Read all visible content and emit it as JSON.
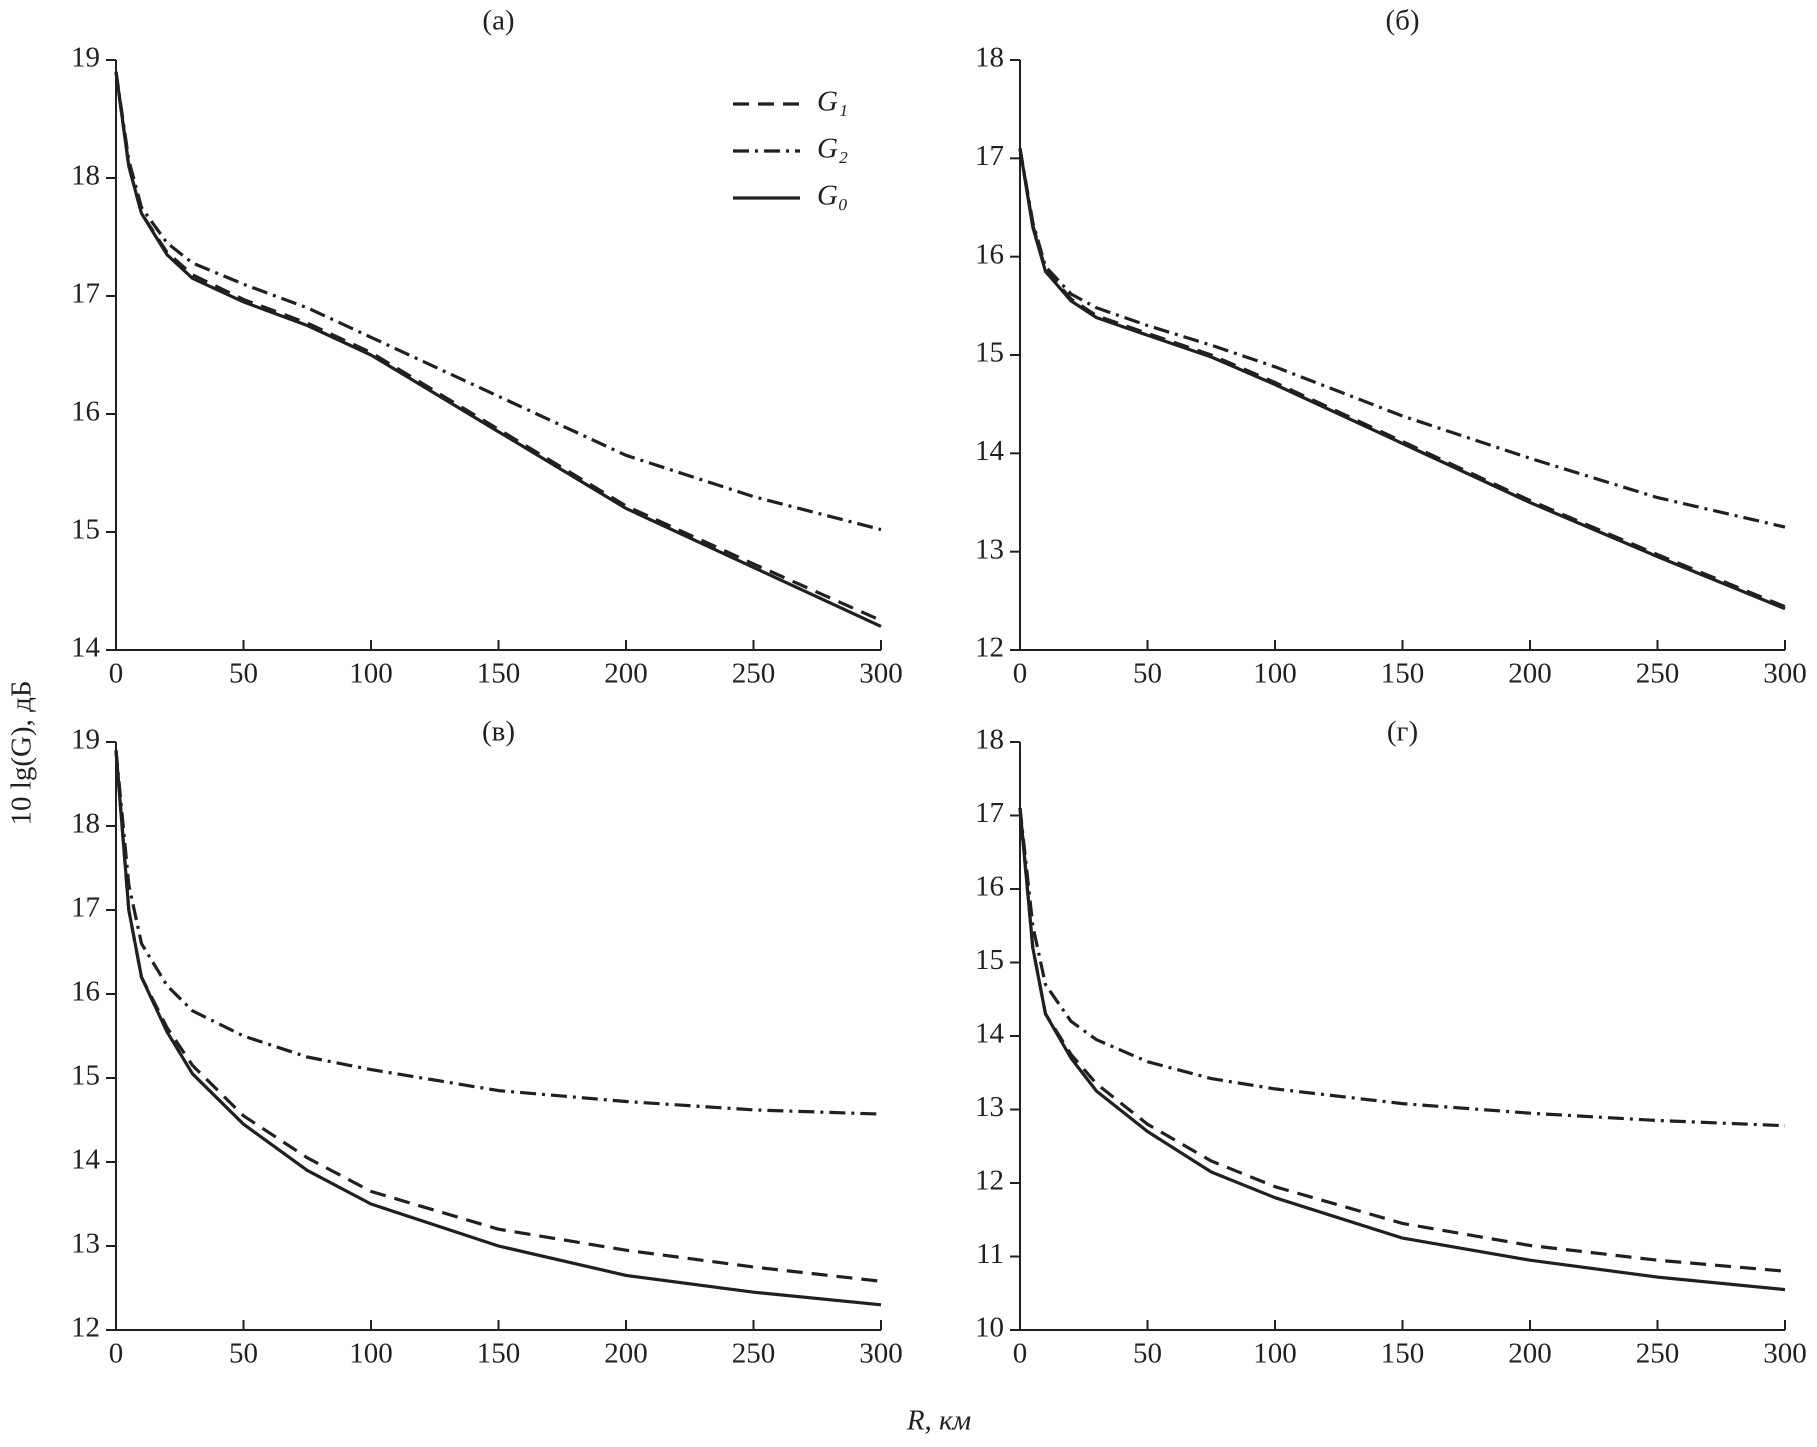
{
  "xlabel": "R, км",
  "ylabel": "10 lg(G), дБ",
  "chart_data": [
    {
      "type": "line",
      "title": "(а)",
      "x": [
        0,
        5,
        10,
        20,
        30,
        50,
        75,
        100,
        150,
        200,
        250,
        300
      ],
      "xlim": [
        0,
        300
      ],
      "xticks": [
        0,
        50,
        100,
        150,
        200,
        250,
        300
      ],
      "ylim": [
        14,
        19
      ],
      "yticks": [
        14,
        15,
        16,
        17,
        18,
        19
      ],
      "legend": "upper right",
      "series": [
        {
          "name": "G₁",
          "color": "#231f20",
          "dash": "dashed",
          "values": [
            18.9,
            18.1,
            17.7,
            17.37,
            17.18,
            16.97,
            16.77,
            16.52,
            15.87,
            15.22,
            14.73,
            14.25
          ]
        },
        {
          "name": "G₂",
          "color": "#231f20",
          "dash": "dashdot",
          "values": [
            18.9,
            18.15,
            17.75,
            17.45,
            17.28,
            17.1,
            16.9,
            16.65,
            16.15,
            15.65,
            15.3,
            15.02
          ]
        },
        {
          "name": "G₀",
          "color": "#231f20",
          "dash": "solid",
          "values": [
            18.9,
            18.1,
            17.7,
            17.35,
            17.15,
            16.95,
            16.75,
            16.5,
            15.85,
            15.2,
            14.7,
            14.2
          ]
        }
      ]
    },
    {
      "type": "line",
      "title": "(б)",
      "x": [
        0,
        5,
        10,
        20,
        30,
        50,
        75,
        100,
        150,
        200,
        250,
        300
      ],
      "xlim": [
        0,
        300
      ],
      "xticks": [
        0,
        50,
        100,
        150,
        200,
        250,
        300
      ],
      "ylim": [
        12,
        18
      ],
      "yticks": [
        12,
        13,
        14,
        15,
        16,
        17,
        18
      ],
      "series": [
        {
          "color": "#231f20",
          "dash": "dashed",
          "values": [
            17.1,
            16.32,
            15.87,
            15.57,
            15.4,
            15.22,
            15.0,
            14.72,
            14.12,
            13.52,
            12.97,
            12.44
          ]
        },
        {
          "color": "#231f20",
          "dash": "dashdot",
          "values": [
            17.1,
            16.35,
            15.9,
            15.62,
            15.48,
            15.3,
            15.1,
            14.88,
            14.38,
            13.95,
            13.55,
            13.25
          ]
        },
        {
          "color": "#231f20",
          "dash": "solid",
          "values": [
            17.1,
            16.3,
            15.85,
            15.55,
            15.38,
            15.2,
            14.98,
            14.7,
            14.1,
            13.5,
            12.95,
            12.42
          ]
        }
      ]
    },
    {
      "type": "line",
      "title": "(в)",
      "x": [
        0,
        5,
        10,
        20,
        30,
        50,
        75,
        100,
        150,
        200,
        250,
        300
      ],
      "xlim": [
        0,
        300
      ],
      "xticks": [
        0,
        50,
        100,
        150,
        200,
        250,
        300
      ],
      "ylim": [
        12,
        19
      ],
      "yticks": [
        12,
        13,
        14,
        15,
        16,
        17,
        18,
        19
      ],
      "series": [
        {
          "color": "#231f20",
          "dash": "dashed",
          "values": [
            18.9,
            17.0,
            16.2,
            15.6,
            15.15,
            14.55,
            14.05,
            13.65,
            13.2,
            12.95,
            12.75,
            12.58
          ]
        },
        {
          "color": "#231f20",
          "dash": "dashdot",
          "values": [
            18.9,
            17.3,
            16.6,
            16.1,
            15.8,
            15.5,
            15.25,
            15.1,
            14.85,
            14.72,
            14.62,
            14.57
          ]
        },
        {
          "color": "#231f20",
          "dash": "solid",
          "values": [
            18.9,
            17.0,
            16.2,
            15.55,
            15.05,
            14.45,
            13.9,
            13.5,
            13.0,
            12.65,
            12.45,
            12.3
          ]
        }
      ]
    },
    {
      "type": "line",
      "title": "(г)",
      "x": [
        0,
        5,
        10,
        20,
        30,
        50,
        75,
        100,
        150,
        200,
        250,
        300
      ],
      "xlim": [
        0,
        300
      ],
      "xticks": [
        0,
        50,
        100,
        150,
        200,
        250,
        300
      ],
      "ylim": [
        10,
        18
      ],
      "yticks": [
        10,
        11,
        12,
        13,
        14,
        15,
        16,
        17,
        18
      ],
      "series": [
        {
          "color": "#231f20",
          "dash": "dashed",
          "values": [
            17.1,
            15.2,
            14.3,
            13.75,
            13.35,
            12.8,
            12.3,
            11.95,
            11.45,
            11.15,
            10.95,
            10.8
          ]
        },
        {
          "color": "#231f20",
          "dash": "dashdot",
          "values": [
            17.1,
            15.5,
            14.7,
            14.2,
            13.95,
            13.65,
            13.42,
            13.28,
            13.08,
            12.95,
            12.85,
            12.78
          ]
        },
        {
          "color": "#231f20",
          "dash": "solid",
          "values": [
            17.1,
            15.2,
            14.3,
            13.7,
            13.25,
            12.7,
            12.15,
            11.8,
            11.25,
            10.95,
            10.72,
            10.55
          ]
        }
      ]
    }
  ]
}
